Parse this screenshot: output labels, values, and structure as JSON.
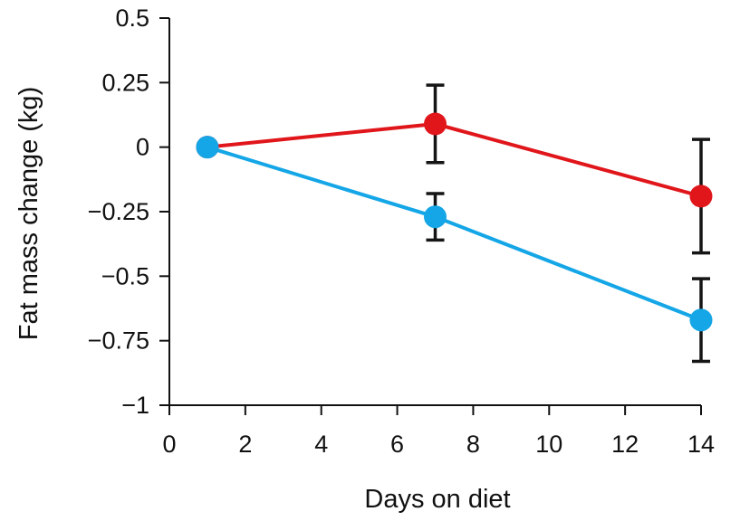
{
  "chart_data": {
    "type": "line",
    "title": "",
    "xlabel": "Days on diet",
    "ylabel": "Fat mass change (kg)",
    "xlim": [
      0,
      14
    ],
    "ylim": [
      -1,
      0.5
    ],
    "x_ticks": [
      0,
      2,
      4,
      6,
      8,
      10,
      12,
      14
    ],
    "x_tick_labels": [
      "0",
      "2",
      "4",
      "6",
      "8",
      "10",
      "12",
      "14"
    ],
    "y_ticks": [
      0.5,
      0.25,
      0,
      -0.25,
      -0.5,
      -0.75,
      -1
    ],
    "y_tick_labels": [
      "0.5",
      "0.25",
      "0",
      "−0.25",
      "−0.5",
      "−0.75",
      "−1"
    ],
    "grid": false,
    "legend": null,
    "series": [
      {
        "name": "red",
        "color": "#e0161b",
        "x": [
          1,
          7,
          14
        ],
        "values": [
          0,
          0.09,
          -0.19
        ],
        "error": [
          null,
          0.15,
          0.22
        ]
      },
      {
        "name": "blue",
        "color": "#14a6e6",
        "x": [
          1,
          7,
          14
        ],
        "values": [
          0,
          -0.27,
          -0.67
        ],
        "error": [
          null,
          0.09,
          0.16
        ]
      }
    ]
  }
}
